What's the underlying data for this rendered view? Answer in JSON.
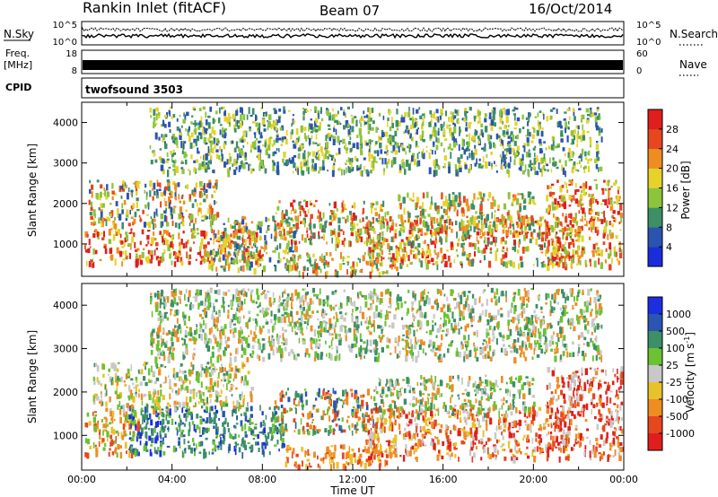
{
  "header": {
    "station": "Rankin Inlet (fitACF)",
    "beam": "Beam 07",
    "date": "16/Oct/2014"
  },
  "nsky_panel": {
    "left_label": "N.Sky",
    "right_label": "N.Search",
    "ticks_left": [
      "10^5",
      "10^0"
    ],
    "ticks_right": [
      "10^5",
      "10^0"
    ]
  },
  "freq_panel": {
    "left_label_line1": "Freq.",
    "left_label_line2": "[MHz]",
    "right_label": "Nave",
    "ticks_left": [
      "18",
      "8"
    ],
    "ticks_right": [
      "60",
      "0"
    ]
  },
  "cpid_panel": {
    "label": "CPID",
    "value": "twofsound 3503"
  },
  "chart_data": [
    {
      "type": "heatmap",
      "name": "power",
      "ylabel": "Slant Range [km]",
      "xlabel": "",
      "xlim": [
        0,
        24
      ],
      "ylim": [
        200,
        4500
      ],
      "yticks": [
        1000,
        2000,
        3000,
        4000
      ],
      "xticks": [
        0,
        2,
        4,
        6,
        8,
        10,
        12,
        14,
        16,
        18,
        20,
        22,
        24
      ],
      "colorbar": {
        "label": "Power [dB]",
        "ticks": [
          "4",
          "8",
          "12",
          "16",
          "20",
          "24",
          "28"
        ],
        "colors": [
          "#1a2ddb",
          "#2a54b0",
          "#3c8f67",
          "#8cc43c",
          "#e6d22a",
          "#ef8c22",
          "#e6471f",
          "#e01e1e"
        ]
      },
      "bands": [
        {
          "t0": 0.1,
          "t1": 8.0,
          "r0": 550,
          "r1": 1400,
          "palette": [
            6,
            7,
            7,
            5,
            4,
            3
          ]
        },
        {
          "t0": 0.3,
          "t1": 6.0,
          "r0": 1500,
          "r1": 2600,
          "palette": [
            3,
            2,
            4,
            5,
            6,
            1
          ]
        },
        {
          "t0": 5.5,
          "t1": 9.5,
          "r0": 400,
          "r1": 1700,
          "palette": [
            3,
            2,
            1,
            4,
            5
          ]
        },
        {
          "t0": 8.5,
          "t1": 13.5,
          "r0": 1000,
          "r1": 2100,
          "palette": [
            3,
            2,
            4,
            5,
            6,
            7
          ]
        },
        {
          "t0": 9.0,
          "t1": 14.0,
          "r0": 300,
          "r1": 800,
          "palette": [
            5,
            6,
            4,
            3,
            2
          ]
        },
        {
          "t0": 12.5,
          "t1": 22.0,
          "r0": 500,
          "r1": 1700,
          "palette": [
            6,
            7,
            5,
            4,
            3,
            2
          ]
        },
        {
          "t0": 14.0,
          "t1": 20.0,
          "r0": 1300,
          "r1": 2300,
          "palette": [
            3,
            4,
            2,
            5,
            6
          ]
        },
        {
          "t0": 20.5,
          "t1": 23.9,
          "r0": 500,
          "r1": 2600,
          "palette": [
            6,
            7,
            5,
            4,
            3
          ]
        },
        {
          "t0": 3.0,
          "t1": 23.0,
          "r0": 2800,
          "r1": 4400,
          "palette": [
            2,
            3,
            1,
            4
          ]
        }
      ]
    },
    {
      "type": "heatmap",
      "name": "velocity",
      "ylabel": "Slant Range [km]",
      "xlabel": "Time UT",
      "xlim": [
        0,
        24
      ],
      "ylim": [
        200,
        4500
      ],
      "yticks": [
        1000,
        2000,
        3000,
        4000
      ],
      "xticks": [
        0,
        2,
        4,
        6,
        8,
        10,
        12,
        14,
        16,
        18,
        20,
        22,
        24
      ],
      "xticklabels": [
        "00:00",
        "04:00",
        "08:00",
        "12:00",
        "16:00",
        "20:00",
        "00:00"
      ],
      "colorbar": {
        "label": "Velocity [m s",
        "label_sup": "-1",
        "label_end": "]",
        "ticks": [
          "1000",
          "500",
          "100",
          "25",
          "-25",
          "-100",
          "-500",
          "-1000"
        ],
        "colors": [
          "#1c2ee0",
          "#2a55b2",
          "#3c8f67",
          "#6bc232",
          "#c8c8c8",
          "#e8c22a",
          "#ef8c22",
          "#e6471f",
          "#e01e1e"
        ]
      },
      "bands": [
        {
          "t0": 0.1,
          "t1": 2.5,
          "r0": 600,
          "r1": 1600,
          "palette": [
            6,
            7,
            5,
            3
          ]
        },
        {
          "t0": 2.0,
          "t1": 9.0,
          "r0": 600,
          "r1": 1700,
          "palette": [
            2,
            1,
            3,
            0,
            2
          ]
        },
        {
          "t0": 0.5,
          "t1": 7.5,
          "r0": 1600,
          "r1": 2700,
          "palette": [
            3,
            4,
            2,
            6,
            5
          ]
        },
        {
          "t0": 8.5,
          "t1": 13.0,
          "r0": 1100,
          "r1": 2100,
          "palette": [
            2,
            3,
            6,
            7,
            1
          ]
        },
        {
          "t0": 9.0,
          "t1": 13.5,
          "r0": 300,
          "r1": 800,
          "palette": [
            6,
            7,
            5
          ]
        },
        {
          "t0": 12.5,
          "t1": 21.5,
          "r0": 500,
          "r1": 1700,
          "palette": [
            6,
            7,
            4,
            8,
            5
          ]
        },
        {
          "t0": 13.0,
          "t1": 20.0,
          "r0": 1500,
          "r1": 2400,
          "palette": [
            3,
            4,
            6,
            2
          ]
        },
        {
          "t0": 20.5,
          "t1": 23.9,
          "r0": 500,
          "r1": 2600,
          "palette": [
            6,
            7,
            4,
            8
          ]
        },
        {
          "t0": 3.0,
          "t1": 23.0,
          "r0": 2800,
          "r1": 4400,
          "palette": [
            3,
            4,
            6,
            2
          ]
        }
      ]
    }
  ]
}
